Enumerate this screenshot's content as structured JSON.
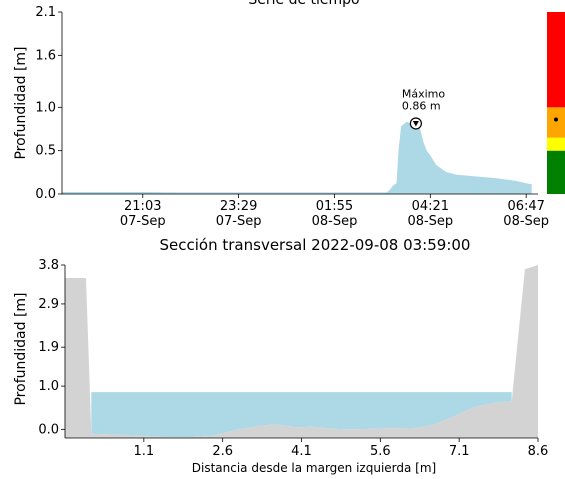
{
  "chart_data": [
    {
      "type": "area",
      "title": "Serie de tiempo",
      "xlabel": "",
      "ylabel": "Profundidad [m]",
      "ylim": [
        0.0,
        2.1
      ],
      "yticks": [
        "0.0",
        "0.5",
        "1.0",
        "1.6",
        "2.1"
      ],
      "ytick_values": [
        0.0,
        0.5,
        1.0,
        1.6,
        2.1
      ],
      "xlim": [
        "2022-09-07 19:00",
        "2022-09-08 07:05"
      ],
      "xticks": [
        {
          "t": "2022-09-07 21:03",
          "time": "21:03",
          "date": "07-Sep"
        },
        {
          "t": "2022-09-07 23:29",
          "time": "23:29",
          "date": "07-Sep"
        },
        {
          "t": "2022-09-08 01:55",
          "time": "01:55",
          "date": "08-Sep"
        },
        {
          "t": "2022-09-08 04:21",
          "time": "04:21",
          "date": "08-Sep"
        },
        {
          "t": "2022-09-08 06:47",
          "time": "06:47",
          "date": "08-Sep"
        }
      ],
      "fill_color": "#add8e6",
      "series": [
        {
          "points": [
            [
              "2022-09-07 19:00",
              0.02
            ],
            [
              "2022-09-07 20:00",
              0.02
            ],
            [
              "2022-09-07 21:00",
              0.02
            ],
            [
              "2022-09-07 22:00",
              0.015
            ],
            [
              "2022-09-07 23:00",
              0.015
            ],
            [
              "2022-09-08 00:00",
              0.015
            ],
            [
              "2022-09-08 01:00",
              0.015
            ],
            [
              "2022-09-08 02:00",
              0.015
            ],
            [
              "2022-09-08 03:00",
              0.015
            ],
            [
              "2022-09-08 03:15",
              0.015
            ],
            [
              "2022-09-08 03:20",
              0.05
            ],
            [
              "2022-09-08 03:25",
              0.1
            ],
            [
              "2022-09-08 03:30",
              0.12
            ],
            [
              "2022-09-08 03:33",
              0.5
            ],
            [
              "2022-09-08 03:37",
              0.78
            ],
            [
              "2022-09-08 03:45",
              0.83
            ],
            [
              "2022-09-08 03:55",
              0.8
            ],
            [
              "2022-09-08 03:59",
              0.86
            ],
            [
              "2022-09-08 04:05",
              0.75
            ],
            [
              "2022-09-08 04:10",
              0.6
            ],
            [
              "2022-09-08 04:15",
              0.5
            ],
            [
              "2022-09-08 04:20",
              0.45
            ],
            [
              "2022-09-08 04:30",
              0.33
            ],
            [
              "2022-09-08 04:45",
              0.25
            ],
            [
              "2022-09-08 05:00",
              0.22
            ],
            [
              "2022-09-08 05:30",
              0.2
            ],
            [
              "2022-09-08 06:00",
              0.18
            ],
            [
              "2022-09-08 06:30",
              0.15
            ],
            [
              "2022-09-08 06:47",
              0.12
            ],
            [
              "2022-09-08 06:55",
              0.11
            ]
          ]
        }
      ],
      "annotation": {
        "t": "2022-09-08 03:59",
        "y": 0.86,
        "line1": "Máximo",
        "line2": "0.86 m"
      },
      "level_bar": {
        "segments": [
          {
            "from": 0.0,
            "to": 0.5,
            "color": "#008000"
          },
          {
            "from": 0.5,
            "to": 0.65,
            "color": "#ffff00"
          },
          {
            "from": 0.65,
            "to": 1.0,
            "color": "#ffa500"
          },
          {
            "from": 1.0,
            "to": 2.1,
            "color": "#ff0000"
          }
        ],
        "marker_value": 0.86
      }
    },
    {
      "type": "area",
      "title": "Sección transversal 2022-09-08 03:59:00",
      "xlabel": "Distancia desde la margen izquierda [m]",
      "ylabel": "Profundidad [m]",
      "xlim": [
        -0.4,
        8.6
      ],
      "ylim": [
        -0.2,
        3.8
      ],
      "xticks": [
        "1.1",
        "2.6",
        "4.1",
        "5.6",
        "7.1",
        "8.6"
      ],
      "xtick_values": [
        1.1,
        2.6,
        4.1,
        5.6,
        7.1,
        8.6
      ],
      "yticks": [
        "0.0",
        "1.0",
        "1.9",
        "2.9",
        "3.8"
      ],
      "ytick_values": [
        0.0,
        1.0,
        1.9,
        2.9,
        3.8
      ],
      "water_level": 0.86,
      "water_color": "#add8e6",
      "bank_color": "#d3d3d3",
      "bed_profile": [
        [
          -0.4,
          3.5
        ],
        [
          0.0,
          3.5
        ],
        [
          0.1,
          -0.1
        ],
        [
          0.5,
          -0.12
        ],
        [
          1.0,
          -0.15
        ],
        [
          1.5,
          -0.18
        ],
        [
          2.0,
          -0.18
        ],
        [
          2.4,
          -0.15
        ],
        [
          2.9,
          0.0
        ],
        [
          3.3,
          0.08
        ],
        [
          3.6,
          0.12
        ],
        [
          4.0,
          0.05
        ],
        [
          4.3,
          0.06
        ],
        [
          4.6,
          0.02
        ],
        [
          5.0,
          0.0
        ],
        [
          5.4,
          0.01
        ],
        [
          5.8,
          0.03
        ],
        [
          6.2,
          0.02
        ],
        [
          6.6,
          0.1
        ],
        [
          7.0,
          0.3
        ],
        [
          7.4,
          0.52
        ],
        [
          7.8,
          0.62
        ],
        [
          8.1,
          0.65
        ],
        [
          8.35,
          3.7
        ],
        [
          8.6,
          3.8
        ]
      ]
    }
  ]
}
